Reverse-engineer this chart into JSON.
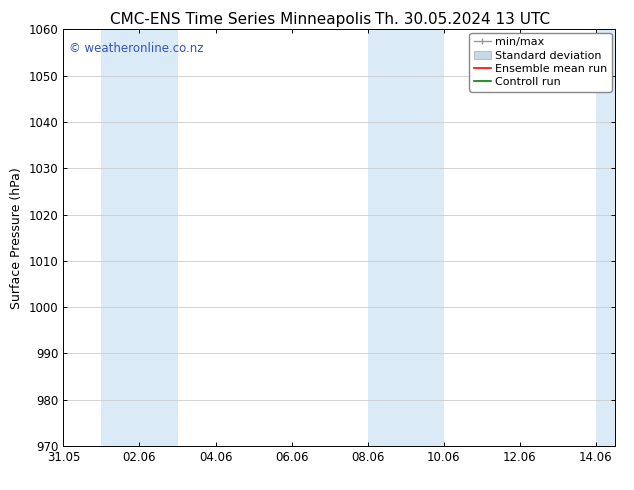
{
  "title_left": "CMC-ENS Time Series Minneapolis",
  "title_right": "Th. 30.05.2024 13 UTC",
  "ylabel": "Surface Pressure (hPa)",
  "ylim": [
    970,
    1060
  ],
  "yticks": [
    970,
    980,
    990,
    1000,
    1010,
    1020,
    1030,
    1040,
    1050,
    1060
  ],
  "xtick_labels": [
    "31.05",
    "02.06",
    "04.06",
    "06.06",
    "08.06",
    "10.06",
    "12.06",
    "14.06"
  ],
  "xtick_positions": [
    0,
    2,
    4,
    6,
    8,
    10,
    12,
    14
  ],
  "xlim": [
    0,
    14.5
  ],
  "shaded_bands": [
    {
      "start": 1,
      "end": 3
    },
    {
      "start": 8,
      "end": 10
    },
    {
      "start": 14,
      "end": 14.5
    }
  ],
  "band_color": "#daeaf7",
  "watermark_text": "© weatheronline.co.nz",
  "watermark_color": "#3355bb",
  "background_color": "#ffffff",
  "grid_color": "#cccccc",
  "title_fontsize": 11,
  "axis_label_fontsize": 9,
  "tick_fontsize": 8.5,
  "legend_fontsize": 8
}
